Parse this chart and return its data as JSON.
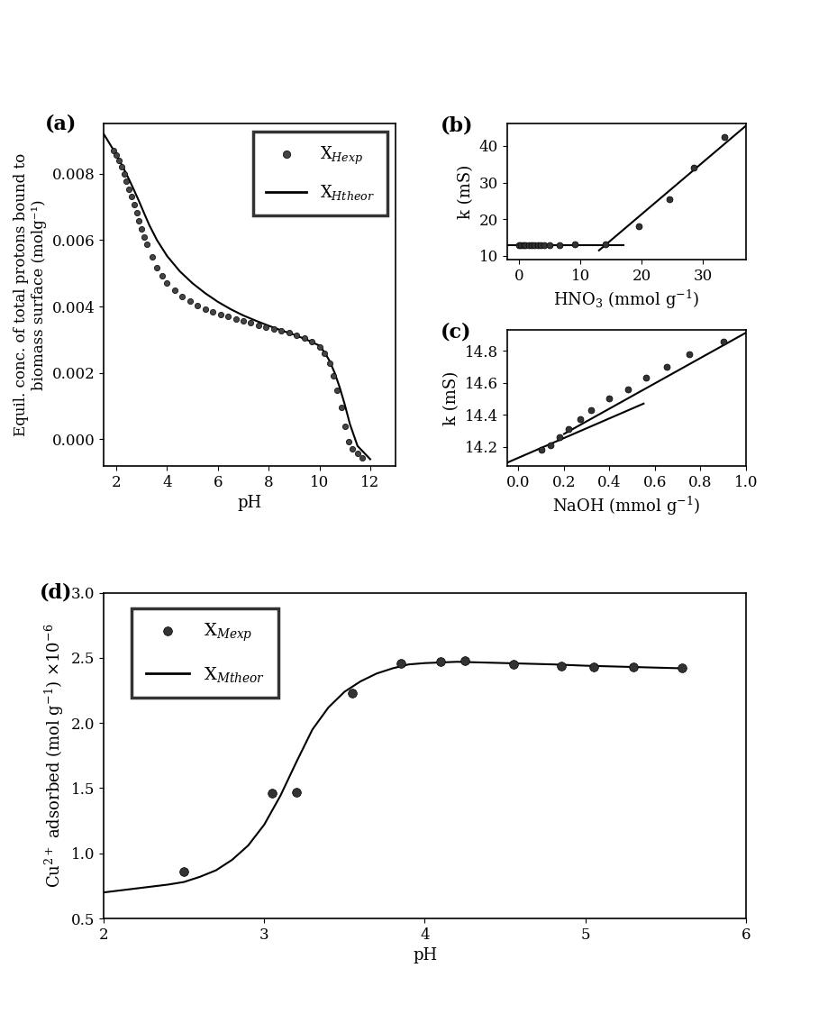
{
  "fig_width": 9.2,
  "fig_height": 11.45,
  "panel_a": {
    "label": "(a)",
    "xlabel": "pH",
    "ylabel": "Equil. conc. of total protons bound to\nbiomass surface (molg⁻¹)",
    "xlim": [
      1.5,
      13
    ],
    "ylim": [
      -0.0008,
      0.0095
    ],
    "yticks": [
      0.0,
      0.002,
      0.004,
      0.006,
      0.008
    ],
    "xticks": [
      2,
      4,
      6,
      8,
      10,
      12
    ],
    "exp_x": [
      1.88,
      2.0,
      2.1,
      2.2,
      2.3,
      2.4,
      2.5,
      2.6,
      2.7,
      2.8,
      2.9,
      3.0,
      3.1,
      3.2,
      3.4,
      3.6,
      3.8,
      4.0,
      4.3,
      4.6,
      4.9,
      5.2,
      5.5,
      5.8,
      6.1,
      6.4,
      6.7,
      7.0,
      7.3,
      7.6,
      7.9,
      8.2,
      8.5,
      8.8,
      9.1,
      9.4,
      9.7,
      10.0,
      10.2,
      10.4,
      10.55,
      10.7,
      10.85,
      11.0,
      11.15,
      11.3,
      11.5,
      11.7
    ],
    "exp_y": [
      0.0087,
      0.00855,
      0.0084,
      0.0082,
      0.008,
      0.00778,
      0.00754,
      0.0073,
      0.00706,
      0.00682,
      0.00658,
      0.00634,
      0.0061,
      0.00588,
      0.0055,
      0.00518,
      0.00492,
      0.0047,
      0.00448,
      0.0043,
      0.00416,
      0.00404,
      0.00393,
      0.00384,
      0.00376,
      0.00369,
      0.00362,
      0.00356,
      0.0035,
      0.00344,
      0.00338,
      0.00333,
      0.00327,
      0.00321,
      0.00314,
      0.00305,
      0.00294,
      0.00278,
      0.00258,
      0.00228,
      0.00192,
      0.00148,
      0.00096,
      0.0004,
      -8e-05,
      -0.00028,
      -0.00042,
      -0.00055
    ],
    "theor_x": [
      1.5,
      1.7,
      1.9,
      2.1,
      2.3,
      2.5,
      2.7,
      2.9,
      3.1,
      3.3,
      3.6,
      4.0,
      4.5,
      5.0,
      5.5,
      6.0,
      6.5,
      7.0,
      7.5,
      8.0,
      8.5,
      9.0,
      9.5,
      10.0,
      10.2,
      10.4,
      10.6,
      10.8,
      11.0,
      11.2,
      11.5,
      12.0
    ],
    "theor_y": [
      0.0092,
      0.00895,
      0.0087,
      0.00843,
      0.00814,
      0.00783,
      0.0075,
      0.00716,
      0.0068,
      0.00645,
      0.006,
      0.00552,
      0.00506,
      0.0047,
      0.0044,
      0.00414,
      0.00392,
      0.00373,
      0.00357,
      0.00342,
      0.00328,
      0.00315,
      0.003,
      0.00282,
      0.00262,
      0.00236,
      0.002,
      0.00156,
      0.00104,
      0.00046,
      -0.0002,
      -0.0006
    ],
    "legend_labels": [
      "X$_{Hexp}$",
      "X$_{Htheor}$"
    ]
  },
  "panel_b": {
    "label": "(b)",
    "xlabel": "HNO$_3$ (mmol g$^{-1}$)",
    "ylabel": "k (mS)",
    "xlim": [
      -2,
      37
    ],
    "ylim": [
      9,
      46
    ],
    "xticks": [
      0,
      10,
      20,
      30
    ],
    "yticks": [
      10,
      20,
      30,
      40
    ],
    "exp_x": [
      0.0,
      0.3,
      0.6,
      1.0,
      1.5,
      2.0,
      2.5,
      3.0,
      3.5,
      4.0,
      5.0,
      6.5,
      9.0,
      14.0,
      19.5,
      24.5,
      28.5,
      33.5
    ],
    "exp_y": [
      13.0,
      13.0,
      13.0,
      12.95,
      12.95,
      12.95,
      12.95,
      13.0,
      13.0,
      13.0,
      13.0,
      13.05,
      13.1,
      13.1,
      18.0,
      25.5,
      34.0,
      42.5
    ],
    "line1_x": [
      -2,
      17.0
    ],
    "line1_y": [
      13.05,
      13.05
    ],
    "line2_x": [
      13.0,
      37.0
    ],
    "line2_y": [
      11.5,
      45.5
    ]
  },
  "panel_c": {
    "label": "(c)",
    "xlabel": "NaOH (mmol g$^{-1}$)",
    "ylabel": "k (mS)",
    "xlim": [
      -0.05,
      1.0
    ],
    "ylim": [
      14.08,
      14.93
    ],
    "xticks": [
      0.0,
      0.2,
      0.4,
      0.6,
      0.8,
      1.0
    ],
    "yticks": [
      14.2,
      14.4,
      14.6,
      14.8
    ],
    "exp_x": [
      0.1,
      0.14,
      0.18,
      0.22,
      0.27,
      0.32,
      0.4,
      0.48,
      0.56,
      0.65,
      0.75,
      0.9
    ],
    "exp_y": [
      14.18,
      14.21,
      14.26,
      14.31,
      14.37,
      14.43,
      14.5,
      14.56,
      14.63,
      14.7,
      14.78,
      14.86
    ],
    "line1_x": [
      -0.05,
      0.55
    ],
    "line1_y": [
      14.1,
      14.47
    ],
    "line2_x": [
      0.2,
      1.02
    ],
    "line2_y": [
      14.28,
      14.93
    ]
  },
  "panel_d": {
    "label": "(d)",
    "xlabel": "pH",
    "ylabel": "Cu$^{2+}$ adsorbed (mol g$^{-1}$) ×10$^{-6}$",
    "xlim": [
      2.0,
      6.0
    ],
    "ylim": [
      0.5,
      3.0
    ],
    "xticks": [
      2,
      3,
      4,
      5,
      6
    ],
    "yticks": [
      0.5,
      1.0,
      1.5,
      2.0,
      2.5,
      3.0
    ],
    "exp_x": [
      2.5,
      3.05,
      3.2,
      3.55,
      3.85,
      4.1,
      4.25,
      4.55,
      4.85,
      5.05,
      5.3,
      5.6
    ],
    "exp_y": [
      0.86,
      1.46,
      1.47,
      2.23,
      2.46,
      2.47,
      2.48,
      2.45,
      2.44,
      2.43,
      2.43,
      2.42
    ],
    "theor_x": [
      2.0,
      2.2,
      2.4,
      2.5,
      2.6,
      2.7,
      2.8,
      2.9,
      3.0,
      3.1,
      3.15,
      3.2,
      3.3,
      3.4,
      3.5,
      3.6,
      3.7,
      3.8,
      3.9,
      4.0,
      4.2,
      4.5,
      4.8,
      5.0,
      5.3,
      5.6
    ],
    "theor_y": [
      0.7,
      0.73,
      0.76,
      0.78,
      0.82,
      0.87,
      0.95,
      1.06,
      1.22,
      1.44,
      1.57,
      1.7,
      1.95,
      2.12,
      2.24,
      2.32,
      2.38,
      2.42,
      2.45,
      2.46,
      2.47,
      2.46,
      2.45,
      2.44,
      2.43,
      2.42
    ],
    "legend_labels": [
      "X$_{Mexp}$",
      "X$_{Mtheor}$"
    ]
  },
  "font_size": 13,
  "label_font_size": 13,
  "tick_font_size": 12,
  "panel_label_size": 16
}
